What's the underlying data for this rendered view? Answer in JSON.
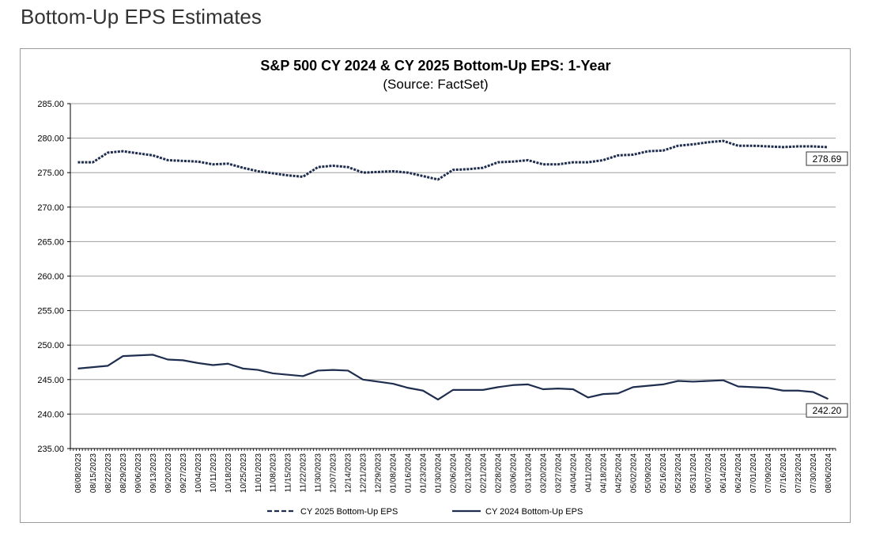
{
  "page": {
    "heading": "Bottom-Up EPS Estimates"
  },
  "colors": {
    "series": "#1f2d4e",
    "grid": "#9e9e9e",
    "axis": "#000000"
  },
  "chart_data": {
    "type": "line",
    "title": "S&P 500 CY 2024 & CY 2025 Bottom-Up  EPS: 1-Year",
    "subtitle": "(Source: FactSet)",
    "xlabel": "",
    "ylabel": "",
    "ylim": [
      235,
      285
    ],
    "yticks": [
      "285.00",
      "280.00",
      "275.00",
      "270.00",
      "265.00",
      "260.00",
      "255.00",
      "250.00",
      "245.00",
      "240.00",
      "235.00"
    ],
    "grid": true,
    "legend_position": "bottom",
    "x_labels": [
      "08/08/2023",
      "08/15/2023",
      "08/22/2023",
      "08/29/2023",
      "09/06/2023",
      "09/13/2023",
      "09/20/2023",
      "09/27/2023",
      "10/04/2023",
      "10/11/2023",
      "10/18/2023",
      "10/25/2023",
      "11/01/2023",
      "11/08/2023",
      "11/15/2023",
      "11/22/2023",
      "11/30/2023",
      "12/07/2023",
      "12/14/2023",
      "12/21/2023",
      "12/29/2023",
      "01/08/2024",
      "01/16/2024",
      "01/23/2024",
      "01/30/2024",
      "02/06/2024",
      "02/13/2024",
      "02/21/2024",
      "02/28/2024",
      "03/06/2024",
      "03/13/2024",
      "03/20/2024",
      "03/27/2024",
      "04/04/2024",
      "04/11/2024",
      "04/18/2024",
      "04/25/2024",
      "05/02/2024",
      "05/09/2024",
      "05/16/2024",
      "05/23/2024",
      "05/31/2024",
      "06/07/2024",
      "06/14/2024",
      "06/24/2024",
      "07/01/2024",
      "07/09/2024",
      "07/16/2024",
      "07/23/2024",
      "07/30/2024",
      "08/06/2024"
    ],
    "series": [
      {
        "name": "CY 2025 Bottom-Up EPS",
        "style": "dashed",
        "end_label": "278.69",
        "values": [
          276.5,
          276.5,
          277.9,
          278.1,
          277.8,
          277.5,
          276.8,
          276.7,
          276.6,
          276.2,
          276.3,
          275.7,
          275.2,
          274.9,
          274.6,
          274.4,
          275.8,
          276.0,
          275.8,
          275.0,
          275.1,
          275.2,
          275.0,
          274.5,
          274.0,
          275.4,
          275.5,
          275.7,
          276.5,
          276.6,
          276.8,
          276.2,
          276.2,
          276.5,
          276.5,
          276.8,
          277.5,
          277.6,
          278.1,
          278.2,
          278.9,
          279.1,
          279.4,
          279.6,
          278.9,
          278.9,
          278.8,
          278.7,
          278.8,
          278.8,
          278.69
        ]
      },
      {
        "name": "CY 2024 Bottom-Up EPS",
        "style": "solid",
        "end_label": "242.20",
        "values": [
          246.6,
          246.8,
          247.0,
          248.4,
          248.5,
          248.6,
          247.9,
          247.8,
          247.4,
          247.1,
          247.3,
          246.6,
          246.4,
          245.9,
          245.7,
          245.5,
          246.3,
          246.4,
          246.3,
          245.0,
          244.7,
          244.4,
          243.8,
          243.4,
          242.1,
          243.5,
          243.5,
          243.5,
          243.9,
          244.2,
          244.3,
          243.6,
          243.7,
          243.6,
          242.4,
          242.9,
          243.0,
          243.9,
          244.1,
          244.3,
          244.8,
          244.7,
          244.8,
          244.9,
          244.0,
          243.9,
          243.8,
          243.4,
          243.4,
          243.2,
          242.2
        ]
      }
    ]
  }
}
